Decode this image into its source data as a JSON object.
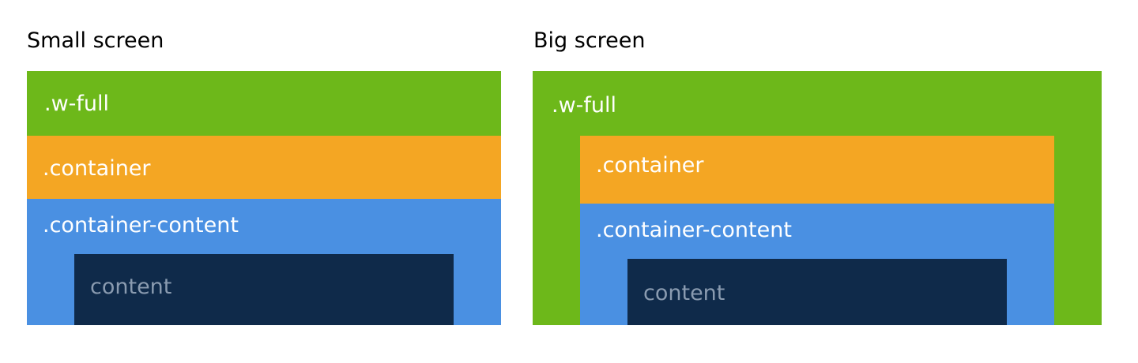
{
  "small_screen": {
    "heading": "Small screen",
    "w_full_label": ".w-full",
    "container_label": ".container",
    "container_content_label": ".container-content",
    "content_label": "content"
  },
  "big_screen": {
    "heading": "Big screen",
    "w_full_label": ".w-full",
    "container_label": ".container",
    "container_content_label": ".container-content",
    "content_label": "content"
  },
  "colors": {
    "w_full": "#6db81a",
    "container": "#f4a623",
    "container_content": "#4a90e2",
    "content": "#0f2a4a",
    "content_text": "#8a9bb0"
  }
}
